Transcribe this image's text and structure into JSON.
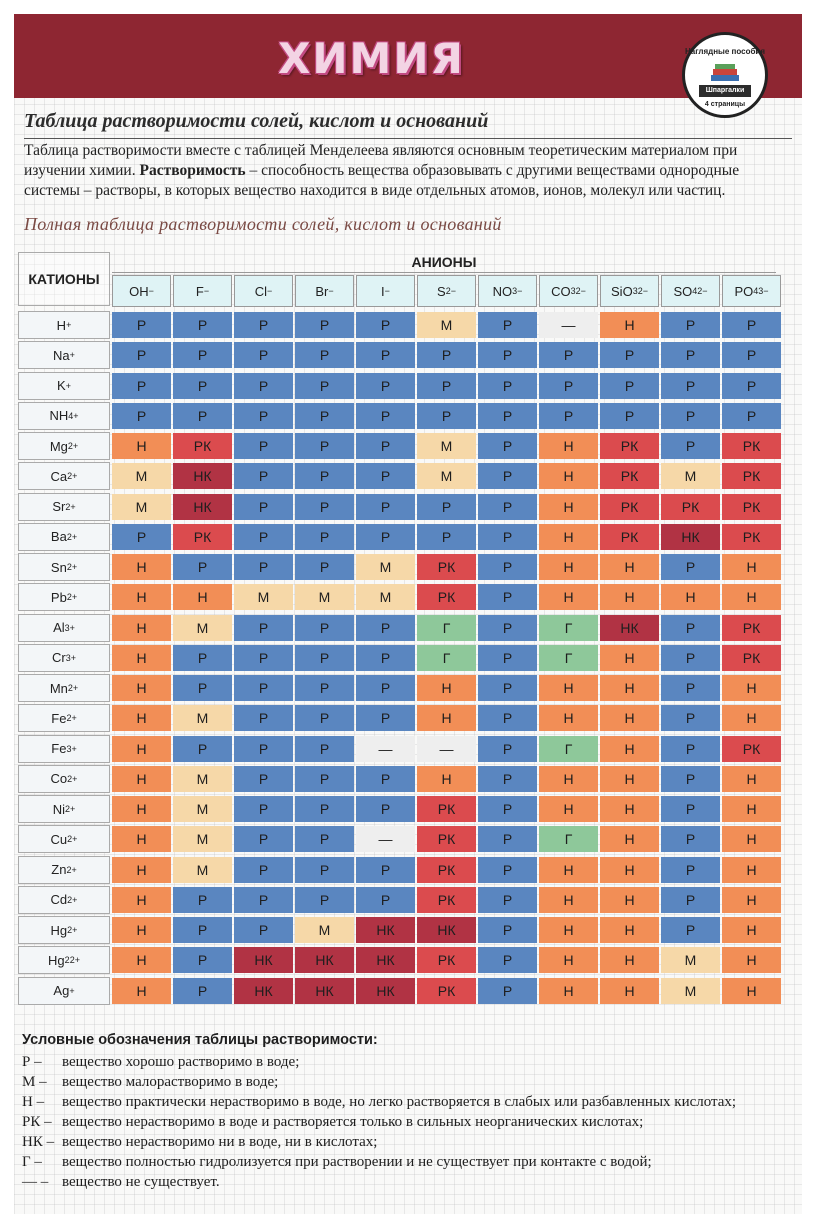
{
  "header": {
    "title": "ХИМИЯ",
    "badge": {
      "top": "Наглядные пособия",
      "middle": "Шпаргалки",
      "bottom": "4 страницы"
    }
  },
  "subtitle": "Таблица растворимости солей, кислот и оснований",
  "intro": {
    "text1": "Таблица растворимости вместе с таблицей Менделеева являются основным теоретическим материалом при изучении химии.",
    "term": "Растворимость",
    "text2": "– способность вещества образовывать с другими веществами однородные системы – растворы, в которых вещество находится в виде отдельных атомов, ионов, молекул или частиц."
  },
  "table": {
    "title": "Полная таблица растворимости солей, кислот и оснований",
    "cations_label": "КАТИОНЫ",
    "anions_label": "АНИОНЫ",
    "anions": [
      {
        "base": "OH",
        "sub": "",
        "sup": "−"
      },
      {
        "base": "F",
        "sub": "",
        "sup": "−"
      },
      {
        "base": "Cl",
        "sub": "",
        "sup": "−"
      },
      {
        "base": "Br",
        "sub": "",
        "sup": "−"
      },
      {
        "base": "I",
        "sub": "",
        "sup": "−"
      },
      {
        "base": "S",
        "sub": "",
        "sup": "2−"
      },
      {
        "base": "NO",
        "sub": "3",
        "sup": "−"
      },
      {
        "base": "CO",
        "sub": "3",
        "sup": "2−"
      },
      {
        "base": "SiO",
        "sub": "3",
        "sup": "2−"
      },
      {
        "base": "SO",
        "sub": "4",
        "sup": "2−"
      },
      {
        "base": "PO",
        "sub": "4",
        "sup": "3−"
      }
    ],
    "rows": [
      {
        "base": "H",
        "sub": "",
        "sup": "+",
        "values": [
          "Р",
          "Р",
          "Р",
          "Р",
          "Р",
          "М",
          "Р",
          "—",
          "Н",
          "Р",
          "Р"
        ]
      },
      {
        "base": "Na",
        "sub": "",
        "sup": "+",
        "values": [
          "Р",
          "Р",
          "Р",
          "Р",
          "Р",
          "Р",
          "Р",
          "Р",
          "Р",
          "Р",
          "Р"
        ]
      },
      {
        "base": "K",
        "sub": "",
        "sup": "+",
        "values": [
          "Р",
          "Р",
          "Р",
          "Р",
          "Р",
          "Р",
          "Р",
          "Р",
          "Р",
          "Р",
          "Р"
        ]
      },
      {
        "base": "NH",
        "sub": "4",
        "sup": "+",
        "values": [
          "Р",
          "Р",
          "Р",
          "Р",
          "Р",
          "Р",
          "Р",
          "Р",
          "Р",
          "Р",
          "Р"
        ]
      },
      {
        "base": "Mg",
        "sub": "",
        "sup": "2+",
        "values": [
          "Н",
          "РК",
          "Р",
          "Р",
          "Р",
          "М",
          "Р",
          "Н",
          "РК",
          "Р",
          "РК"
        ]
      },
      {
        "base": "Ca",
        "sub": "",
        "sup": "2+",
        "values": [
          "М",
          "НК",
          "Р",
          "Р",
          "Р",
          "М",
          "Р",
          "Н",
          "РК",
          "М",
          "РК"
        ]
      },
      {
        "base": "Sr",
        "sub": "",
        "sup": "2+",
        "values": [
          "М",
          "НК",
          "Р",
          "Р",
          "Р",
          "Р",
          "Р",
          "Н",
          "РК",
          "РК",
          "РК"
        ]
      },
      {
        "base": "Ba",
        "sub": "",
        "sup": "2+",
        "values": [
          "Р",
          "РК",
          "Р",
          "Р",
          "Р",
          "Р",
          "Р",
          "Н",
          "РК",
          "НК",
          "РК"
        ]
      },
      {
        "base": "Sn",
        "sub": "",
        "sup": "2+",
        "values": [
          "Н",
          "Р",
          "Р",
          "Р",
          "М",
          "РК",
          "Р",
          "Н",
          "Н",
          "Р",
          "Н"
        ]
      },
      {
        "base": "Pb",
        "sub": "",
        "sup": "2+",
        "values": [
          "Н",
          "Н",
          "М",
          "М",
          "М",
          "РК",
          "Р",
          "Н",
          "Н",
          "Н",
          "Н"
        ]
      },
      {
        "base": "Al",
        "sub": "",
        "sup": "3+",
        "values": [
          "Н",
          "М",
          "Р",
          "Р",
          "Р",
          "Г",
          "Р",
          "Г",
          "НК",
          "Р",
          "РК"
        ]
      },
      {
        "base": "Cr",
        "sub": "",
        "sup": "3+",
        "values": [
          "Н",
          "Р",
          "Р",
          "Р",
          "Р",
          "Г",
          "Р",
          "Г",
          "Н",
          "Р",
          "РК"
        ]
      },
      {
        "base": "Mn",
        "sub": "",
        "sup": "2+",
        "values": [
          "Н",
          "Р",
          "Р",
          "Р",
          "Р",
          "Н",
          "Р",
          "Н",
          "Н",
          "Р",
          "Н"
        ]
      },
      {
        "base": "Fe",
        "sub": "",
        "sup": "2+",
        "values": [
          "Н",
          "М",
          "Р",
          "Р",
          "Р",
          "Н",
          "Р",
          "Н",
          "Н",
          "Р",
          "Н"
        ]
      },
      {
        "base": "Fe",
        "sub": "",
        "sup": "3+",
        "values": [
          "Н",
          "Р",
          "Р",
          "Р",
          "—",
          "—",
          "Р",
          "Г",
          "Н",
          "Р",
          "РК"
        ]
      },
      {
        "base": "Co",
        "sub": "",
        "sup": "2+",
        "values": [
          "Н",
          "М",
          "Р",
          "Р",
          "Р",
          "Н",
          "Р",
          "Н",
          "Н",
          "Р",
          "Н"
        ]
      },
      {
        "base": "Ni",
        "sub": "",
        "sup": "2+",
        "values": [
          "Н",
          "М",
          "Р",
          "Р",
          "Р",
          "РК",
          "Р",
          "Н",
          "Н",
          "Р",
          "Н"
        ]
      },
      {
        "base": "Cu",
        "sub": "",
        "sup": "2+",
        "values": [
          "Н",
          "М",
          "Р",
          "Р",
          "—",
          "РК",
          "Р",
          "Г",
          "Н",
          "Р",
          "Н"
        ]
      },
      {
        "base": "Zn",
        "sub": "",
        "sup": "2+",
        "values": [
          "Н",
          "М",
          "Р",
          "Р",
          "Р",
          "РК",
          "Р",
          "Н",
          "Н",
          "Р",
          "Н"
        ]
      },
      {
        "base": "Cd",
        "sub": "",
        "sup": "2+",
        "values": [
          "Н",
          "Р",
          "Р",
          "Р",
          "Р",
          "РК",
          "Р",
          "Н",
          "Н",
          "Р",
          "Н"
        ]
      },
      {
        "base": "Hg",
        "sub": "",
        "sup": "2+",
        "values": [
          "Н",
          "Р",
          "Р",
          "М",
          "НК",
          "НК",
          "Р",
          "Н",
          "Н",
          "Р",
          "Н"
        ]
      },
      {
        "base": "Hg",
        "sub": "2",
        "sup": "2+",
        "values": [
          "Н",
          "Р",
          "НК",
          "НК",
          "НК",
          "РК",
          "Р",
          "Н",
          "Н",
          "М",
          "Н"
        ]
      },
      {
        "base": "Ag",
        "sub": "",
        "sup": "+",
        "values": [
          "Н",
          "Р",
          "НК",
          "НК",
          "НК",
          "РК",
          "Р",
          "Н",
          "Н",
          "М",
          "Н"
        ]
      }
    ]
  },
  "legend": {
    "title": "Условные обозначения таблицы растворимости:",
    "items": [
      {
        "key": "Р –",
        "text": "вещество хорошо растворимо в воде;"
      },
      {
        "key": "М –",
        "text": "вещество малорастворимо в воде;"
      },
      {
        "key": "Н –",
        "text": "вещество практически нерастворимо в воде, но легко растворяется в слабых или разбавленных кислотах;"
      },
      {
        "key": "РК –",
        "text": "вещество нерастворимо в воде и растворяется только в сильных неорганических кислотах;"
      },
      {
        "key": "НК –",
        "text": "вещество нерастворимо ни в воде, ни в кислотах;"
      },
      {
        "key": "Г –",
        "text": "вещество полностью гидролизуется при растворении и не существует при контакте с водой;"
      },
      {
        "key": "— –",
        "text": "вещество не существует."
      }
    ]
  },
  "colors": {
    "Р": "#5a86c0",
    "М": "#f6d8a8",
    "Н": "#f28e56",
    "РК": "#db4b4e",
    "НК": "#b13344",
    "Г": "#8ec89a",
    "—": "#eeeeee",
    "banner": "#8e2632"
  }
}
